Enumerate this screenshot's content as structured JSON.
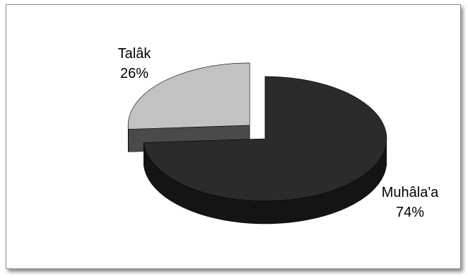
{
  "chart_data": {
    "type": "pie",
    "title": "",
    "three_d": true,
    "exploded": true,
    "legend": "none",
    "slices": [
      {
        "label": "Muhâla'a",
        "value": 74,
        "percent_label": "74%",
        "color": "#2b2b2b",
        "side_color": "#141414"
      },
      {
        "label": "Talâk",
        "value": 26,
        "percent_label": "26%",
        "color": "#c2c2c2",
        "side_color": "#4a4a4a"
      }
    ]
  }
}
